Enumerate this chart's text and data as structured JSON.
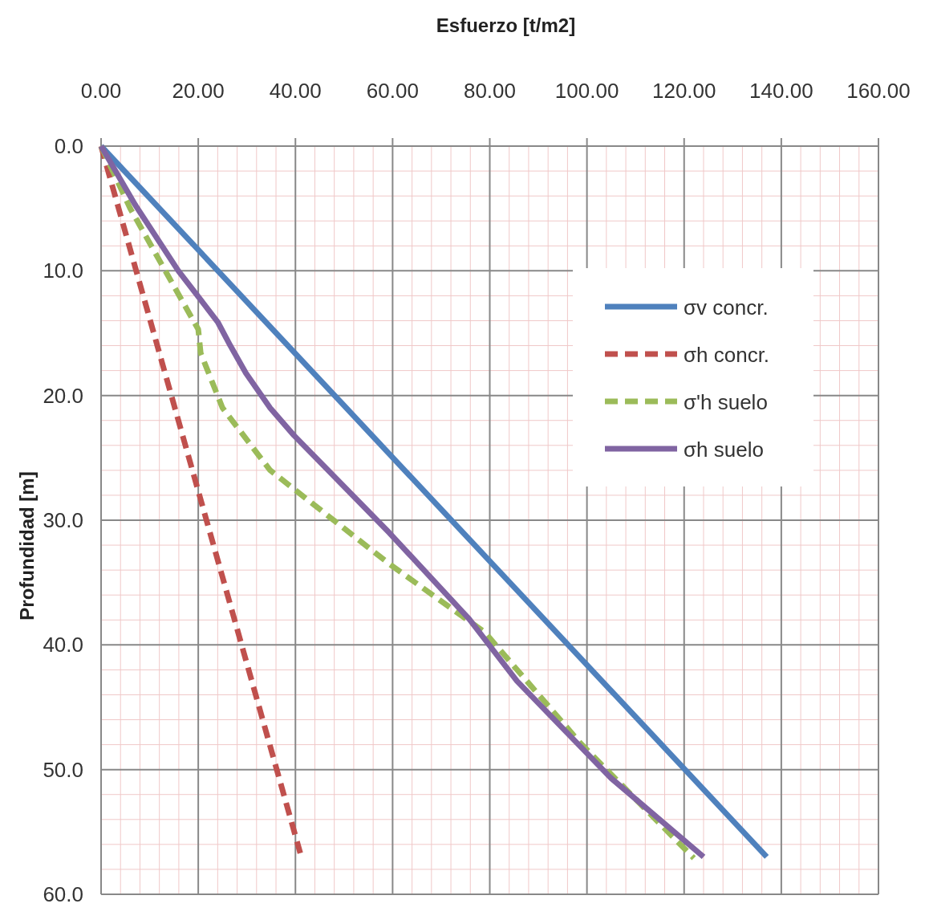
{
  "chart_data": {
    "type": "line",
    "xlabel": "Esfuerzo [t/m2]",
    "ylabel": "Profundidad [m]",
    "xlim": [
      0,
      160
    ],
    "ylim": [
      60,
      0
    ],
    "xticks": [
      {
        "value": 0,
        "label": "0.00"
      },
      {
        "value": 20,
        "label": "20.00"
      },
      {
        "value": 40,
        "label": "40.00"
      },
      {
        "value": 60,
        "label": "60.00"
      },
      {
        "value": 80,
        "label": "80.00"
      },
      {
        "value": 100,
        "label": "100.00"
      },
      {
        "value": 120,
        "label": "120.00"
      },
      {
        "value": 140,
        "label": "140.00"
      },
      {
        "value": 160,
        "label": "160.00"
      }
    ],
    "yticks": [
      {
        "value": 0,
        "label": "0.0"
      },
      {
        "value": 10,
        "label": "10.0"
      },
      {
        "value": 20,
        "label": "20.0"
      },
      {
        "value": 30,
        "label": "30.0"
      },
      {
        "value": 40,
        "label": "40.0"
      },
      {
        "value": 50,
        "label": "50.0"
      },
      {
        "value": 60,
        "label": "60.0"
      }
    ],
    "grid": true,
    "legend": "top right",
    "series": [
      {
        "name": "σv concr.",
        "color": "#4f81bd",
        "line_style": "solid",
        "x": [
          0,
          137
        ],
        "values": [
          0,
          57
        ]
      },
      {
        "name": "σh concr.",
        "color": "#c0504d",
        "line_style": "dashed",
        "x": [
          0,
          41
        ],
        "values": [
          0,
          56.7
        ]
      },
      {
        "name": "σ'h suelo",
        "color": "#9bbb59",
        "line_style": "dashed",
        "x": [
          0,
          6,
          20,
          20.5,
          25,
          34.8,
          59.3,
          79,
          98.7,
          122
        ],
        "values": [
          0,
          5,
          14.7,
          16.6,
          21,
          26,
          33.5,
          39,
          47.9,
          57.1
        ]
      },
      {
        "name": "σh suelo",
        "color": "#8064a2",
        "line_style": "solid",
        "x": [
          0,
          7,
          15.9,
          24,
          26.6,
          29.8,
          34.8,
          39.7,
          59.3,
          75.7,
          85.6,
          105,
          124
        ],
        "values": [
          0,
          4.7,
          10,
          14.1,
          16,
          18.2,
          21,
          23.2,
          31,
          37.9,
          42.9,
          50.7,
          57
        ]
      }
    ]
  }
}
